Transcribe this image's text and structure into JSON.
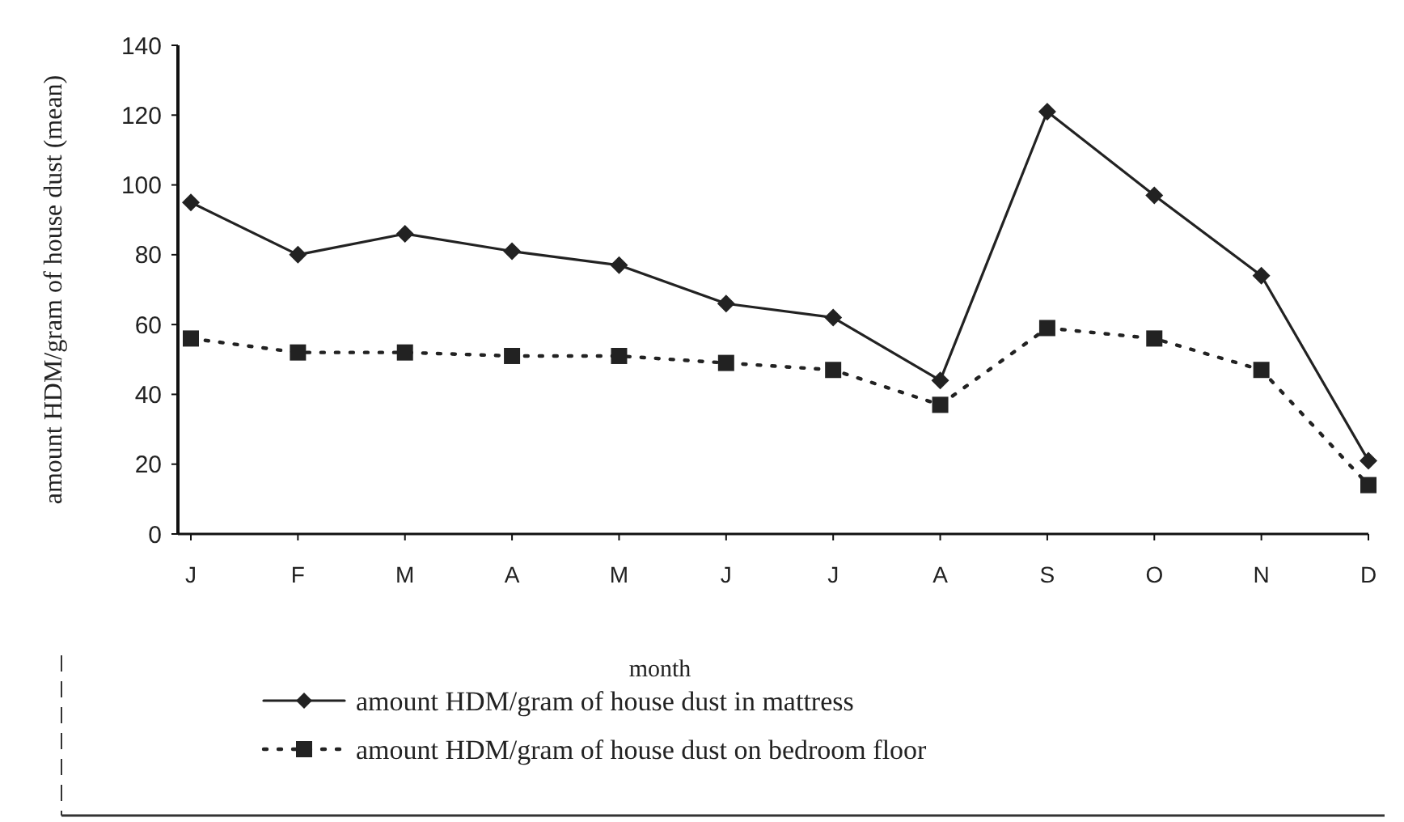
{
  "chart_data": {
    "type": "line",
    "xlabel": "month",
    "ylabel": "amount HDM/gram of house dust (mean)",
    "categories": [
      "J",
      "F",
      "M",
      "A",
      "M",
      "J",
      "J",
      "A",
      "S",
      "O",
      "N",
      "D"
    ],
    "series": [
      {
        "name": "amount HDM/gram of house dust in mattress",
        "color": "#222222",
        "marker": "diamond",
        "line_style": "solid",
        "values": [
          95,
          80,
          86,
          81,
          77,
          66,
          62,
          44,
          121,
          97,
          74,
          21
        ]
      },
      {
        "name": "amount HDM/gram of house dust on bedroom floor",
        "color": "#222222",
        "marker": "square",
        "line_style": "dotted",
        "values": [
          56,
          52,
          52,
          51,
          51,
          49,
          47,
          37,
          59,
          56,
          47,
          14
        ]
      }
    ],
    "ylim": [
      0,
      140
    ],
    "yticks": [
      0,
      20,
      40,
      60,
      80,
      100,
      120,
      140
    ],
    "grid": false,
    "legend": "bottom"
  }
}
